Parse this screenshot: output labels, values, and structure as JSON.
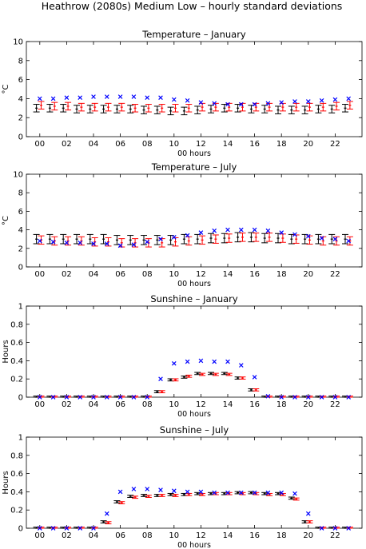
{
  "figure_title": "Heathrow (2080s) Medium Low – hourly standard deviations",
  "colors": {
    "black_series": "#000000",
    "red_series": "#ff0000",
    "blue_series": "#0000ff"
  },
  "chart_data": [
    {
      "type": "scatter",
      "title": "Temperature – January",
      "xlabel": "00 hours",
      "ylabel": "°C",
      "xlim": [
        -1,
        24
      ],
      "ylim": [
        0,
        10
      ],
      "xticks": [
        "00",
        "02",
        "04",
        "06",
        "08",
        "10",
        "12",
        "14",
        "16",
        "18",
        "20",
        "22"
      ],
      "yticks": [
        "0",
        "2",
        "4",
        "6",
        "8",
        "10"
      ],
      "x": [
        0,
        1,
        2,
        3,
        4,
        5,
        6,
        7,
        8,
        9,
        10,
        11,
        12,
        13,
        14,
        15,
        16,
        17,
        18,
        19,
        20,
        21,
        22,
        23
      ],
      "series": [
        {
          "mean": [
            3.0,
            3.0,
            3.0,
            2.9,
            2.9,
            2.9,
            2.9,
            2.9,
            2.8,
            2.8,
            2.7,
            2.7,
            2.8,
            2.9,
            3.0,
            3.0,
            2.9,
            2.9,
            2.8,
            2.8,
            2.8,
            2.9,
            2.9,
            3.0
          ],
          "error": 0.4
        },
        {
          "mean": [
            3.3,
            3.2,
            3.2,
            3.1,
            3.1,
            3.1,
            3.1,
            3.0,
            3.0,
            3.0,
            3.0,
            3.0,
            3.1,
            3.1,
            3.1,
            3.1,
            3.1,
            3.1,
            3.1,
            3.1,
            3.1,
            3.1,
            3.2,
            3.3
          ],
          "error": 0.4
        },
        {
          "values": [
            4.0,
            4.0,
            4.1,
            4.1,
            4.2,
            4.2,
            4.2,
            4.2,
            4.1,
            4.1,
            3.9,
            3.8,
            3.6,
            3.5,
            3.4,
            3.4,
            3.4,
            3.5,
            3.6,
            3.7,
            3.7,
            3.8,
            3.9,
            4.0
          ]
        }
      ]
    },
    {
      "type": "scatter",
      "title": "Temperature – July",
      "xlabel": "00 hours",
      "ylabel": "°C",
      "xlim": [
        -1,
        24
      ],
      "ylim": [
        0,
        10
      ],
      "xticks": [
        "00",
        "02",
        "04",
        "06",
        "08",
        "10",
        "12",
        "14",
        "16",
        "18",
        "20",
        "22"
      ],
      "yticks": [
        "0",
        "2",
        "4",
        "6",
        "8",
        "10"
      ],
      "x": [
        0,
        1,
        2,
        3,
        4,
        5,
        6,
        7,
        8,
        9,
        10,
        11,
        12,
        13,
        14,
        15,
        16,
        17,
        18,
        19,
        20,
        21,
        22,
        23
      ],
      "series": [
        {
          "mean": [
            3.0,
            3.0,
            3.0,
            3.0,
            3.0,
            3.0,
            2.9,
            2.9,
            2.9,
            2.9,
            2.9,
            3.0,
            3.0,
            3.1,
            3.1,
            3.2,
            3.2,
            3.1,
            3.1,
            3.0,
            3.0,
            3.0,
            3.0,
            3.0
          ],
          "error": 0.5
        },
        {
          "mean": [
            2.9,
            2.8,
            2.8,
            2.8,
            2.7,
            2.7,
            2.6,
            2.6,
            2.6,
            2.6,
            2.7,
            2.8,
            2.9,
            3.0,
            3.1,
            3.2,
            3.2,
            3.2,
            3.1,
            3.0,
            2.9,
            2.8,
            2.8,
            2.8
          ],
          "error": 0.45
        },
        {
          "values": [
            2.8,
            2.7,
            2.6,
            2.6,
            2.5,
            2.5,
            2.3,
            2.4,
            2.7,
            3.0,
            3.2,
            3.4,
            3.7,
            3.9,
            4.0,
            4.0,
            4.0,
            3.9,
            3.7,
            3.5,
            3.3,
            3.1,
            3.0,
            2.8
          ]
        }
      ]
    },
    {
      "type": "scatter",
      "title": "Sunshine – January",
      "xlabel": "00 hours",
      "ylabel": "Hours",
      "xlim": [
        -1,
        24
      ],
      "ylim": [
        0,
        1
      ],
      "xticks": [
        "00",
        "02",
        "04",
        "06",
        "08",
        "10",
        "12",
        "14",
        "16",
        "18",
        "20",
        "22"
      ],
      "yticks": [
        "0",
        "0.2",
        "0.4",
        "0.6",
        "0.8",
        "1"
      ],
      "x": [
        0,
        1,
        2,
        3,
        4,
        5,
        6,
        7,
        8,
        9,
        10,
        11,
        12,
        13,
        14,
        15,
        16,
        17,
        18,
        19,
        20,
        21,
        22,
        23
      ],
      "series": [
        {
          "mean": [
            0,
            0,
            0,
            0,
            0,
            0,
            0,
            0,
            0,
            0.06,
            0.19,
            0.22,
            0.26,
            0.26,
            0.26,
            0.21,
            0.08,
            0,
            0,
            0,
            0,
            0,
            0,
            0
          ],
          "error": 0.012
        },
        {
          "mean": [
            0,
            0,
            0,
            0,
            0,
            0,
            0,
            0,
            0,
            0.06,
            0.19,
            0.23,
            0.25,
            0.25,
            0.25,
            0.21,
            0.08,
            0,
            0,
            0,
            0,
            0,
            0,
            0
          ],
          "error": 0.012
        },
        {
          "values": [
            0,
            0,
            0,
            0,
            0,
            0,
            0,
            0,
            0,
            0.2,
            0.37,
            0.39,
            0.4,
            0.39,
            0.39,
            0.35,
            0.22,
            0.01,
            0,
            0,
            0,
            0,
            0,
            0
          ]
        }
      ]
    },
    {
      "type": "scatter",
      "title": "Sunshine – July",
      "xlabel": "00 hours",
      "ylabel": "Hours",
      "xlim": [
        -1,
        24
      ],
      "ylim": [
        0,
        1
      ],
      "xticks": [
        "00",
        "02",
        "04",
        "06",
        "08",
        "10",
        "12",
        "14",
        "16",
        "18",
        "20",
        "22"
      ],
      "yticks": [
        "0",
        "0.2",
        "0.4",
        "0.6",
        "0.8",
        "1"
      ],
      "x": [
        0,
        1,
        2,
        3,
        4,
        5,
        6,
        7,
        8,
        9,
        10,
        11,
        12,
        13,
        14,
        15,
        16,
        17,
        18,
        19,
        20,
        21,
        22,
        23
      ],
      "series": [
        {
          "mean": [
            0,
            0,
            0,
            0,
            0,
            0.07,
            0.29,
            0.35,
            0.36,
            0.36,
            0.37,
            0.37,
            0.38,
            0.38,
            0.38,
            0.39,
            0.39,
            0.38,
            0.38,
            0.33,
            0.07,
            0,
            0,
            0
          ],
          "error": 0.012
        },
        {
          "mean": [
            0,
            0,
            0,
            0,
            0,
            0.06,
            0.28,
            0.34,
            0.35,
            0.36,
            0.36,
            0.37,
            0.37,
            0.38,
            0.38,
            0.38,
            0.38,
            0.37,
            0.37,
            0.32,
            0.07,
            0,
            0,
            0
          ],
          "error": 0.012
        },
        {
          "values": [
            0,
            0,
            0,
            0,
            0,
            0.16,
            0.4,
            0.43,
            0.43,
            0.42,
            0.41,
            0.4,
            0.4,
            0.39,
            0.39,
            0.39,
            0.39,
            0.39,
            0.39,
            0.38,
            0.16,
            0,
            0,
            0
          ]
        }
      ]
    }
  ]
}
